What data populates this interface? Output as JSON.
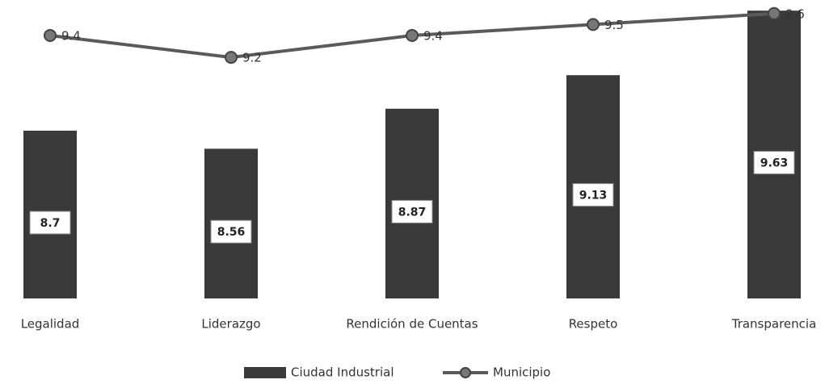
{
  "chart_data": {
    "type": "bar",
    "categories": [
      "Legalidad",
      "Liderazgo",
      "Rendición de Cuentas",
      "Respeto",
      "Transparencia"
    ],
    "series": [
      {
        "name": "Ciudad Industrial",
        "type": "bar",
        "color": "#3a3a3a",
        "values": [
          8.7,
          8.56,
          8.87,
          9.13,
          9.63
        ]
      },
      {
        "name": "Municipio",
        "type": "line",
        "axis": "y2",
        "color": "#5a5a5a",
        "values": [
          9.4,
          9.2,
          9.4,
          9.5,
          9.6
        ]
      }
    ],
    "ylim": [
      7.4,
      9.65
    ],
    "y2lim": [
      7.0,
      9.65
    ],
    "legend": "bottom"
  }
}
